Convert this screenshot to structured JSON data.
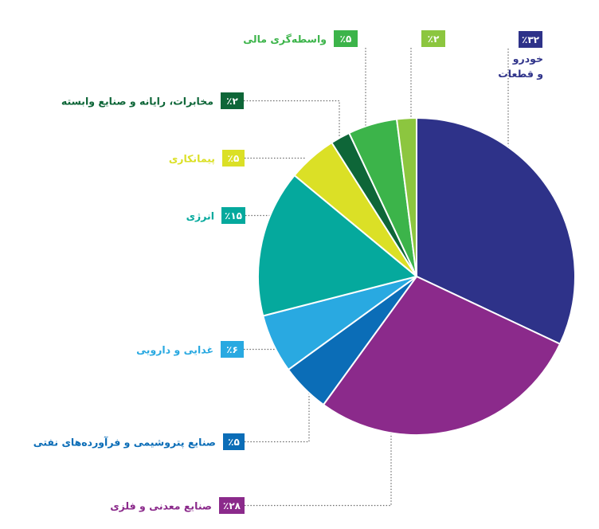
{
  "chart_data": {
    "type": "pie",
    "title": "",
    "slices": [
      {
        "label": "خودرو|و قطعات",
        "value": 32,
        "badge": "٪۳۲",
        "color": "#2e3289"
      },
      {
        "label": "صنایع معدنی و فلزی",
        "value": 28,
        "badge": "٪۲۸",
        "color": "#8b2a8b"
      },
      {
        "label": "صنایع پتروشیمی و فرآورده‌های نفتی",
        "value": 5,
        "badge": "٪۵",
        "color": "#0b6db7"
      },
      {
        "label": "غدایی و دارویی",
        "value": 6,
        "badge": "٪۶",
        "color": "#29a9e1"
      },
      {
        "label": "انرژی",
        "value": 15,
        "badge": "٪۱۵",
        "color": "#05a99d"
      },
      {
        "label": "پیمانکاری",
        "value": 5,
        "badge": "٪۵",
        "color": "#dbe026"
      },
      {
        "label": "مخابرات، رایانه و صنایع وابسته",
        "value": 2,
        "badge": "٪۲",
        "color": "#0e6638"
      },
      {
        "label": "واسطه‌گری مالی",
        "value": 5,
        "badge": "٪۵",
        "color": "#3cb44a"
      },
      {
        "label": "",
        "value": 2,
        "badge": "٪۲",
        "color": "#8cc63f"
      }
    ]
  }
}
